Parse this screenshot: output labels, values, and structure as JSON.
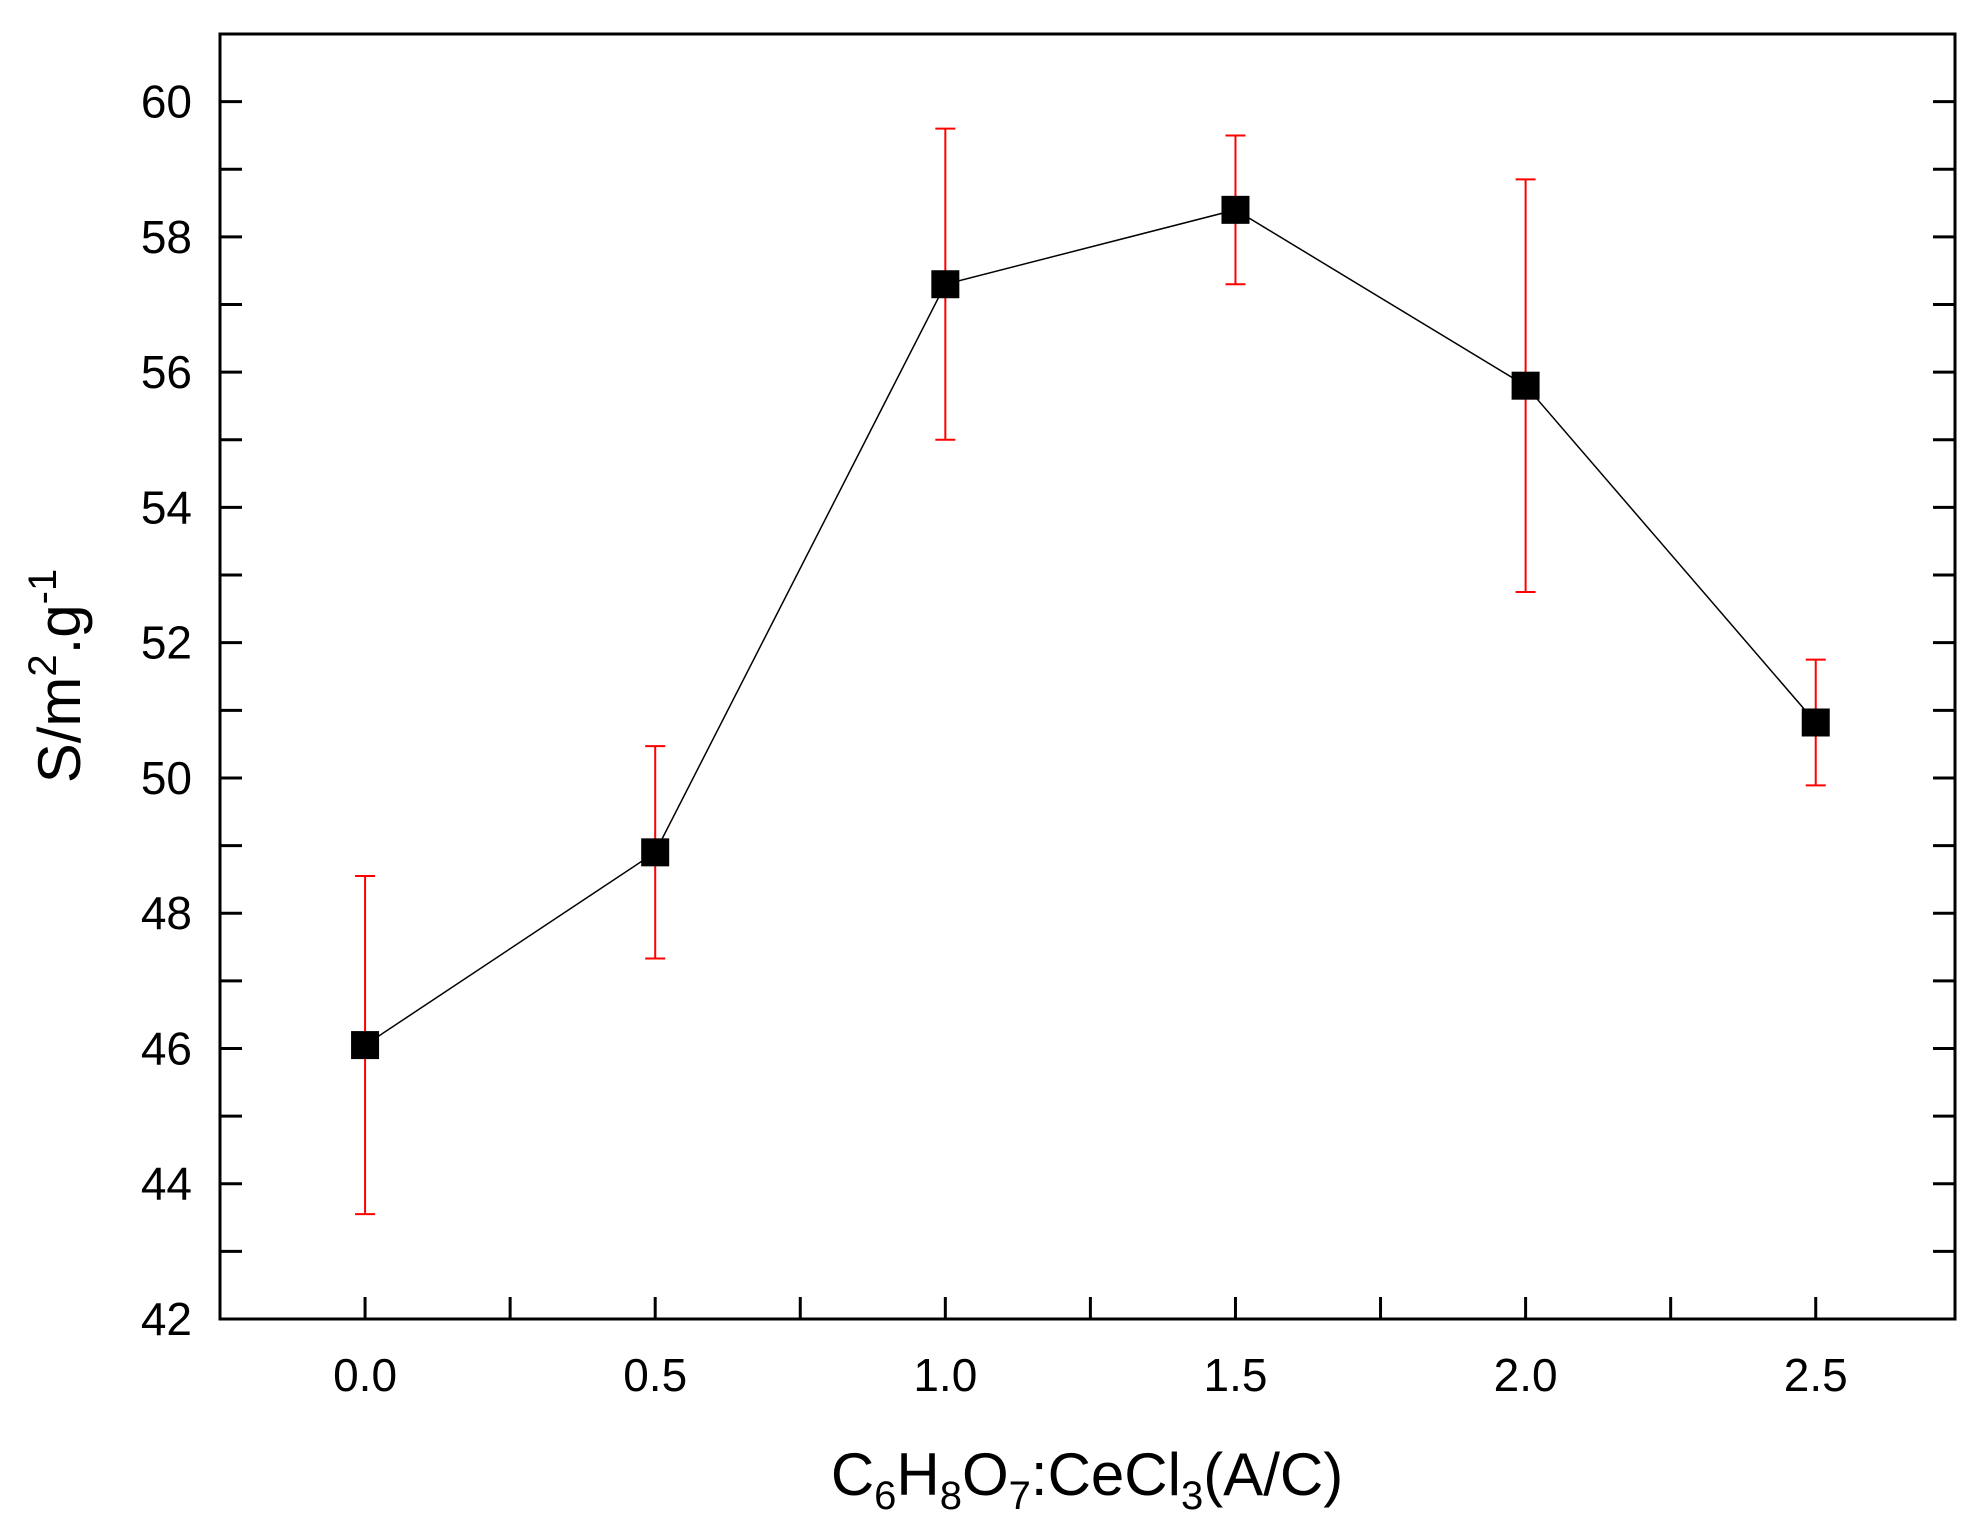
{
  "chart_data": {
    "type": "line",
    "x_label_parts": [
      {
        "text": "C"
      },
      {
        "text": "6",
        "sub": true
      },
      {
        "text": "H"
      },
      {
        "text": "8",
        "sub": true
      },
      {
        "text": "O"
      },
      {
        "text": "7",
        "sub": true
      },
      {
        "text": ":CeCl"
      },
      {
        "text": "3",
        "sub": true
      },
      {
        "text": "(A/C)"
      }
    ],
    "y_label_parts": [
      {
        "text": "S/m"
      },
      {
        "text": "2",
        "sup": true
      },
      {
        "text": ".g"
      },
      {
        "text": "-1",
        "sup": true
      }
    ],
    "x": [
      0,
      0.5,
      1,
      1.5,
      2,
      2.5
    ],
    "series": [
      {
        "color": "#000000",
        "error_color": "#ff0000",
        "values": [
          46.05,
          48.9,
          57.3,
          58.4,
          55.8,
          50.82
        ],
        "errors": [
          2.5,
          1.57,
          2.3,
          1.1,
          3.05,
          0.93
        ]
      }
    ],
    "xlim": [
      -0.25,
      2.74
    ],
    "ylim": [
      42,
      61
    ],
    "xticks": [
      {
        "value": 0,
        "label": "0.0"
      },
      0.5,
      {
        "value": 1,
        "label": "1.0"
      },
      1.5,
      {
        "value": 2,
        "label": "2.0"
      },
      2.5
    ],
    "x_minor_ticks": [
      0.25,
      0.75,
      1.25,
      1.75,
      2.25
    ],
    "yticks": [
      42,
      44,
      46,
      48,
      50,
      52,
      54,
      56,
      58,
      60
    ],
    "y_minor_ticks": [
      43,
      45,
      47,
      49,
      51,
      53,
      55,
      57,
      59
    ],
    "grid": false
  }
}
